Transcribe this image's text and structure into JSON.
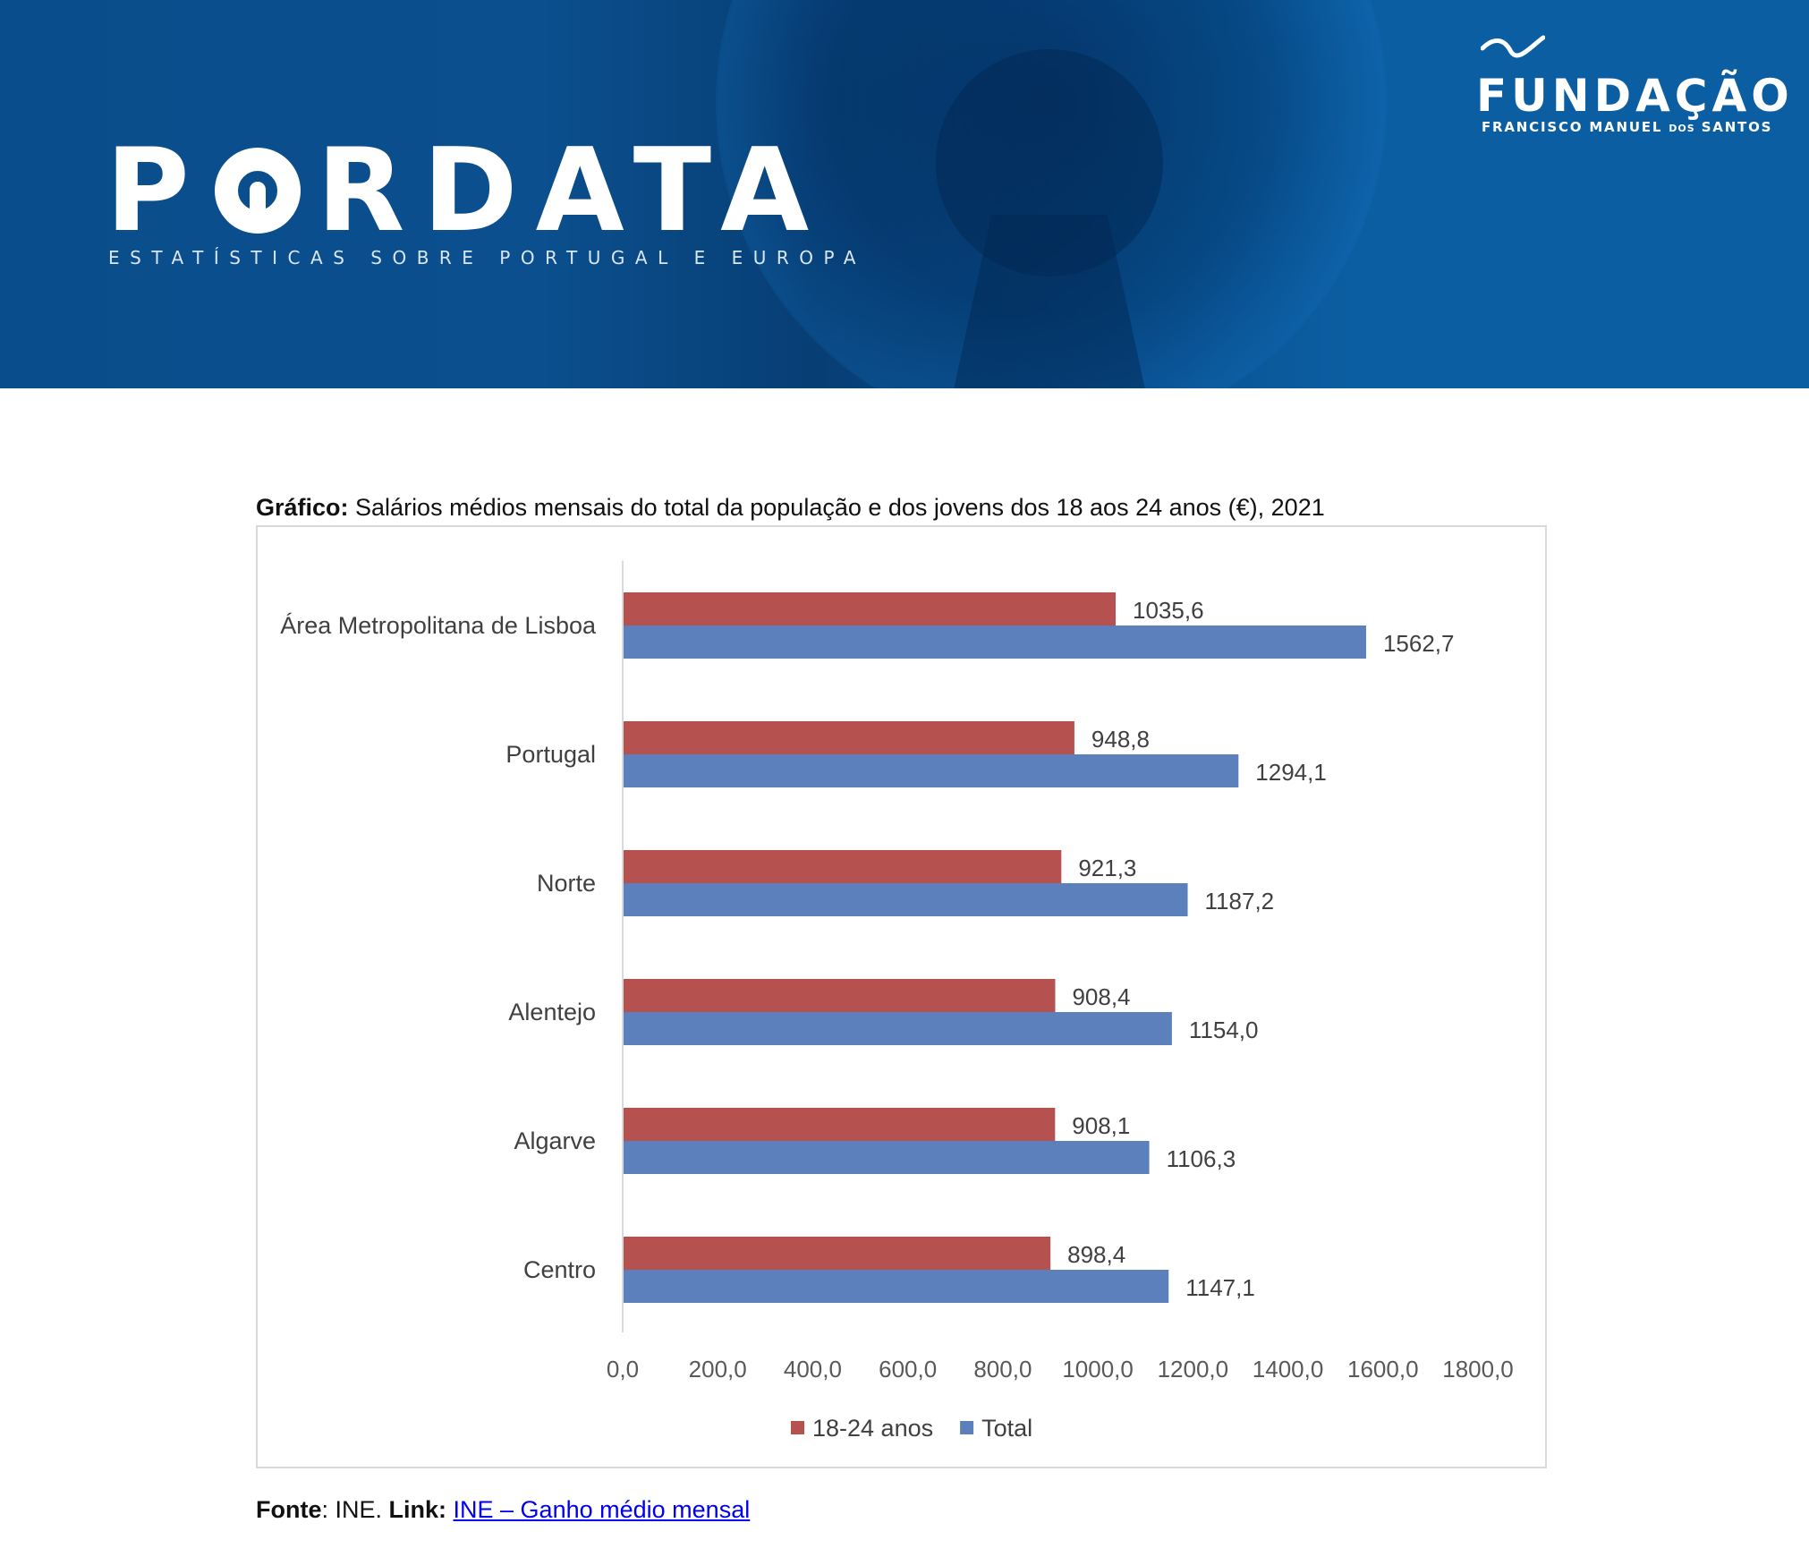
{
  "header": {
    "logo_text_left": "P",
    "logo_text_right": "RDATA",
    "tagline": "ESTATÍSTICAS SOBRE PORTUGAL E EUROPA",
    "foundation_title": "FUNDAÇÃO",
    "foundation_sub_1": "FRANCISCO MANUEL",
    "foundation_sub_2": "DOS",
    "foundation_sub_3": "SANTOS"
  },
  "caption": {
    "prefix": "Gráfico:",
    "text": " Salários médios mensais do total da população e dos jovens dos 18 aos 24 anos (€), 2021"
  },
  "source": {
    "label": "Fonte",
    "value": ": INE. ",
    "link_label": "Link:",
    "link_text": "INE – Ganho médio mensal"
  },
  "colors": {
    "banner": "#0b4f8e",
    "series_young": "#b5524f",
    "series_total": "#5b80bb",
    "axis": "#d9d9d9"
  },
  "chart_data": {
    "type": "bar",
    "orientation": "horizontal",
    "title": "Salários médios mensais do total da população e dos jovens dos 18 aos 24 anos (€), 2021",
    "categories": [
      "Área Metropolitana de Lisboa",
      "Portugal",
      "Norte",
      "Alentejo",
      "Algarve",
      "Centro"
    ],
    "series": [
      {
        "name": "18-24 anos",
        "values": [
          1035.6,
          948.8,
          921.3,
          908.4,
          908.1,
          898.4
        ],
        "labels": [
          "1035,6",
          "948,8",
          "921,3",
          "908,4",
          "908,1",
          "898,4"
        ]
      },
      {
        "name": "Total",
        "values": [
          1562.7,
          1294.1,
          1187.2,
          1154.0,
          1106.3,
          1147.1
        ],
        "labels": [
          "1562,7",
          "1294,1",
          "1187,2",
          "1154,0",
          "1106,3",
          "1147,1"
        ]
      }
    ],
    "xlim": [
      0,
      1800
    ],
    "xticks": [
      "0,0",
      "200,0",
      "400,0",
      "600,0",
      "800,0",
      "1000,0",
      "1200,0",
      "1400,0",
      "1600,0",
      "1800,0"
    ],
    "grid": false,
    "legend_position": "bottom"
  }
}
